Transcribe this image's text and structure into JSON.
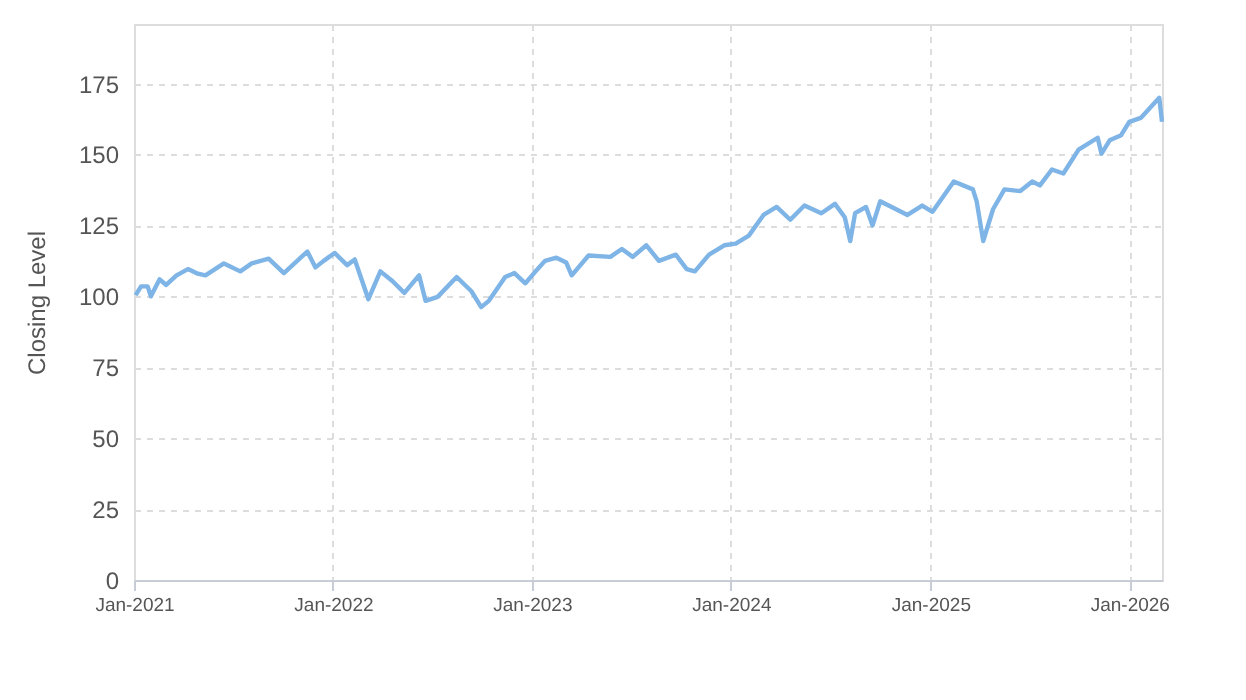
{
  "chart_data": {
    "type": "line",
    "ylabel": "Closing Level",
    "xlim": [
      "2021-01-01",
      "2026-03-02"
    ],
    "ylim": [
      0,
      196
    ],
    "yticks": [
      0,
      25,
      50,
      75,
      100,
      125,
      150,
      175
    ],
    "xticks": [
      {
        "value": "2021-01-01",
        "label": "Jan-2021"
      },
      {
        "value": "2022-01-01",
        "label": "Jan-2022"
      },
      {
        "value": "2023-01-01",
        "label": "Jan-2023"
      },
      {
        "value": "2024-01-01",
        "label": "Jan-2024"
      },
      {
        "value": "2025-01-01",
        "label": "Jan-2025"
      },
      {
        "value": "2026-01-01",
        "label": "Jan-2026"
      }
    ],
    "grid": true,
    "marker": "none",
    "line_style": "solid",
    "x": [
      "2021-01-04",
      "2021-01-14",
      "2021-01-26",
      "2021-02-01",
      "2021-02-17",
      "2021-03-01",
      "2021-03-20",
      "2021-04-10",
      "2021-04-28",
      "2021-05-12",
      "2021-06-15",
      "2021-07-15",
      "2021-08-05",
      "2021-09-05",
      "2021-10-03",
      "2021-11-15",
      "2021-11-30",
      "2021-12-15",
      "2022-01-04",
      "2022-01-27",
      "2022-02-10",
      "2022-03-07",
      "2022-03-29",
      "2022-04-20",
      "2022-05-12",
      "2022-06-08",
      "2022-06-20",
      "2022-07-12",
      "2022-08-16",
      "2022-09-12",
      "2022-09-30",
      "2022-10-14",
      "2022-11-13",
      "2022-11-30",
      "2022-12-20",
      "2023-01-05",
      "2023-01-25",
      "2023-02-15",
      "2023-03-05",
      "2023-03-15",
      "2023-04-15",
      "2023-05-25",
      "2023-06-15",
      "2023-07-05",
      "2023-07-30",
      "2023-08-22",
      "2023-09-22",
      "2023-10-12",
      "2023-10-27",
      "2023-11-22",
      "2023-12-20",
      "2024-01-10",
      "2024-02-03",
      "2024-03-01",
      "2024-03-25",
      "2024-04-19",
      "2024-05-15",
      "2024-06-15",
      "2024-07-10",
      "2024-07-28",
      "2024-08-07",
      "2024-08-16",
      "2024-09-05",
      "2024-09-17",
      "2024-10-01",
      "2024-11-20",
      "2024-12-17",
      "2025-01-05",
      "2025-02-13",
      "2025-03-20",
      "2025-03-27",
      "2025-04-08",
      "2025-04-26",
      "2025-05-17",
      "2025-06-15",
      "2025-07-07",
      "2025-07-21",
      "2025-08-12",
      "2025-09-02",
      "2025-09-30",
      "2025-11-04",
      "2025-11-11",
      "2025-11-26",
      "2025-12-17",
      "2026-01-01",
      "2026-01-22",
      "2026-02-25",
      "2026-03-02"
    ],
    "series": [
      {
        "color": "#7eb4e6",
        "values": [
          100.4,
          103.5,
          103.5,
          100,
          106,
          104,
          107.4,
          109.6,
          108,
          107.4,
          111.6,
          108.8,
          111.6,
          113.3,
          108.2,
          115.8,
          110.2,
          112.5,
          115.3,
          111,
          113,
          99,
          108.8,
          105.4,
          101.2,
          107.4,
          98.4,
          99.8,
          106.8,
          101.8,
          96.2,
          98.4,
          106.8,
          108.2,
          104.6,
          108.2,
          112.5,
          113.6,
          111.9,
          107.4,
          114.4,
          113.9,
          116.7,
          113.9,
          118,
          112.5,
          114.7,
          109.6,
          108.8,
          114.7,
          118,
          118.6,
          121.4,
          128.7,
          131.5,
          127,
          132,
          129.3,
          132.6,
          127.9,
          119.5,
          129.3,
          131.5,
          125,
          133.5,
          128.7,
          132,
          129.8,
          140.5,
          137.7,
          133.5,
          119.5,
          130.7,
          137.7,
          137.1,
          140.5,
          139.1,
          144.7,
          143.3,
          151.7,
          155.9,
          150.3,
          155,
          156.8,
          161.5,
          162.9,
          170,
          161.5
        ]
      }
    ]
  }
}
